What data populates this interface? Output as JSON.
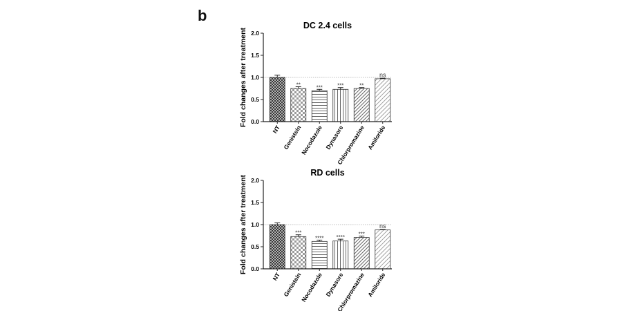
{
  "panel_label": "b",
  "chart_data": [
    {
      "type": "bar",
      "title": "DC 2.4 cells",
      "xlabel": "",
      "ylabel": "Fold changes after treatment",
      "ylim": [
        0,
        2.0
      ],
      "yticks": [
        "0.0",
        "0.5",
        "1.0",
        "1.5",
        "2.0"
      ],
      "reference_line": 1.0,
      "grid": false,
      "categories": [
        "NT",
        "Genistein",
        "Nocodazole",
        "Dynasore",
        "Chlorpromazine",
        "Amiloride"
      ],
      "values": [
        1.0,
        0.75,
        0.7,
        0.73,
        0.75,
        0.97
      ],
      "errors": [
        0.05,
        0.04,
        0.03,
        0.04,
        0.02,
        0.01
      ],
      "significance": [
        "",
        "**",
        "***",
        "***",
        "**",
        "ns"
      ],
      "patterns": [
        "crosshatch",
        "checker",
        "hstripe",
        "vstripe",
        "diag",
        "diag-light"
      ]
    },
    {
      "type": "bar",
      "title": "RD cells",
      "xlabel": "",
      "ylabel": "Fold changes after treatment",
      "ylim": [
        0,
        2.0
      ],
      "yticks": [
        "0.0",
        "0.5",
        "1.0",
        "1.5",
        "2.0"
      ],
      "reference_line": 1.0,
      "grid": false,
      "categories": [
        "NT",
        "Genistein",
        "Nocodazole",
        "Dynasore",
        "Chlorpromazine",
        "Amiloride"
      ],
      "values": [
        1.0,
        0.73,
        0.62,
        0.63,
        0.71,
        0.88
      ],
      "errors": [
        0.04,
        0.04,
        0.03,
        0.04,
        0.03,
        0.01
      ],
      "significance": [
        "",
        "***",
        "****",
        "****",
        "***",
        "ns"
      ],
      "patterns": [
        "crosshatch",
        "checker",
        "hstripe",
        "vstripe",
        "diag",
        "diag-light"
      ]
    }
  ]
}
